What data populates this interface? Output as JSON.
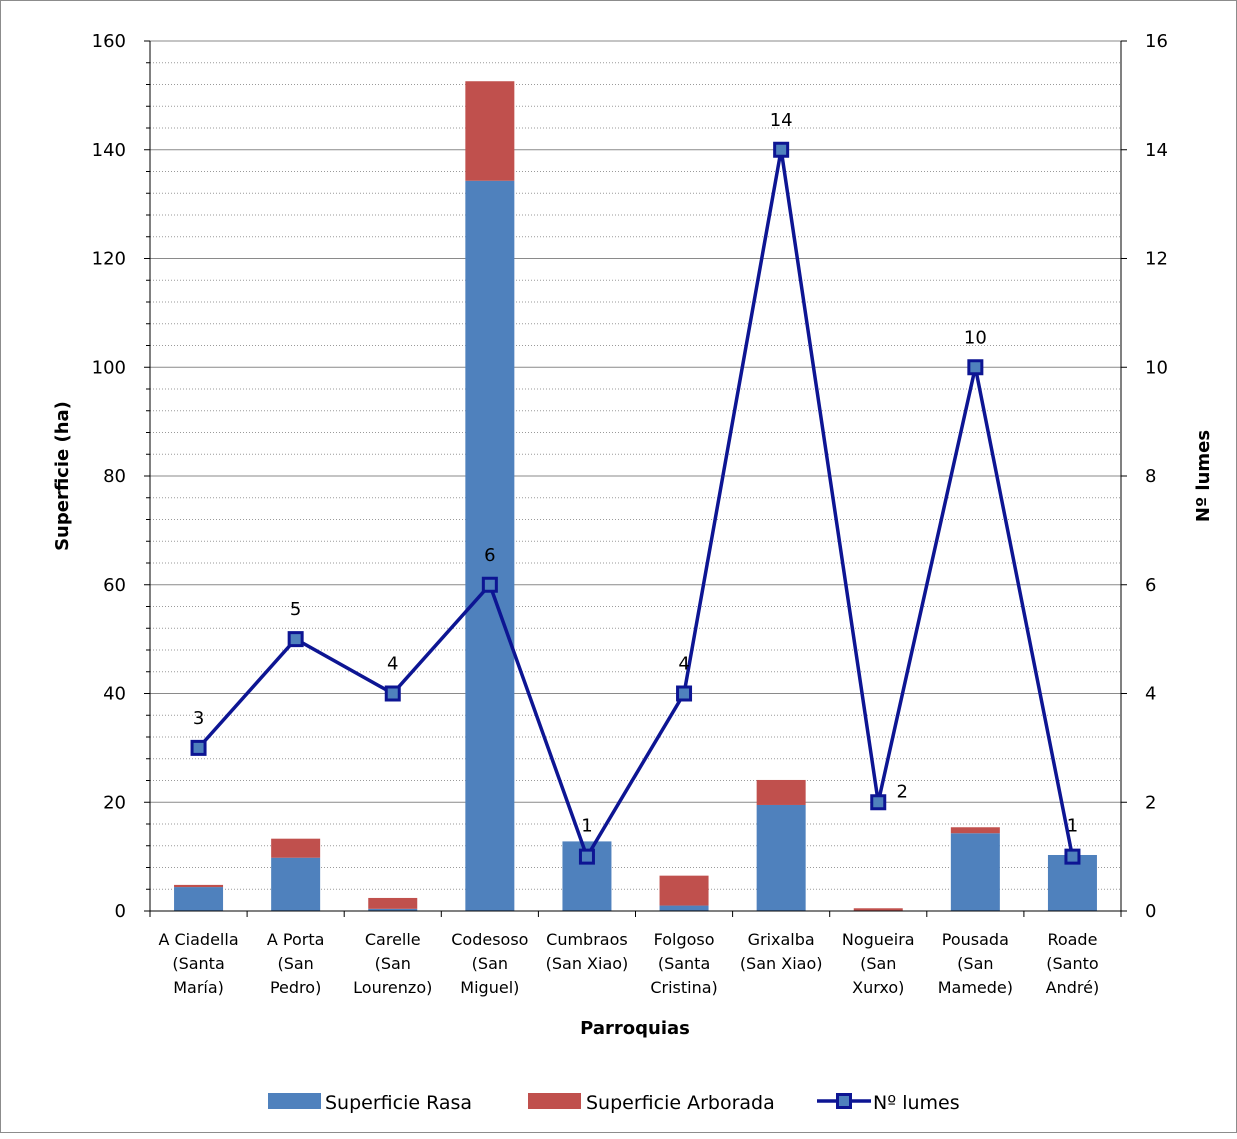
{
  "chart_data": {
    "type": "bar",
    "stacked": true,
    "title": "",
    "xlabel": "Parroquias",
    "ylabel": "Superficie (ha)",
    "y2label": "Nº lumes",
    "ylim": [
      0,
      160
    ],
    "y2lim": [
      0,
      16
    ],
    "y_ticks": [
      0,
      20,
      40,
      60,
      80,
      100,
      120,
      140,
      160
    ],
    "y2_ticks": [
      0,
      2,
      4,
      6,
      8,
      10,
      12,
      14,
      16
    ],
    "grid": true,
    "legend_position": "bottom",
    "categories": [
      [
        "A Ciadella",
        "(Santa",
        "María)"
      ],
      [
        "A Porta",
        "(San",
        "Pedro)"
      ],
      [
        "Carelle",
        "(San",
        "Lourenzo)"
      ],
      [
        "Codesoso",
        "(San",
        "Miguel)"
      ],
      [
        "Cumbraos",
        "(San Xiao)"
      ],
      [
        "Folgoso",
        "(Santa",
        "Cristina)"
      ],
      [
        "Grixalba",
        "(San Xiao)"
      ],
      [
        "Nogueira",
        "(San",
        "Xurxo)"
      ],
      [
        "Pousada",
        "(San",
        "Mamede)"
      ],
      [
        "Roade",
        "(Santo",
        "André)"
      ]
    ],
    "series": [
      {
        "name": "Superficie Rasa",
        "type": "bar",
        "axis": "left",
        "color": "#4f81bd",
        "values": [
          4.4,
          9.8,
          0.4,
          134.3,
          12.8,
          1.0,
          19.5,
          0.1,
          14.3,
          10.3
        ]
      },
      {
        "name": "Superficie Arborada",
        "type": "bar",
        "axis": "left",
        "color": "#c0504d",
        "values": [
          0.4,
          3.5,
          2.0,
          18.3,
          0.0,
          5.5,
          4.6,
          0.4,
          1.1,
          0.0
        ]
      },
      {
        "name": "Nº lumes",
        "type": "line",
        "axis": "right",
        "color": "#0d1593",
        "values": [
          3,
          5,
          4,
          6,
          1,
          4,
          14,
          2,
          10,
          1
        ]
      }
    ]
  }
}
